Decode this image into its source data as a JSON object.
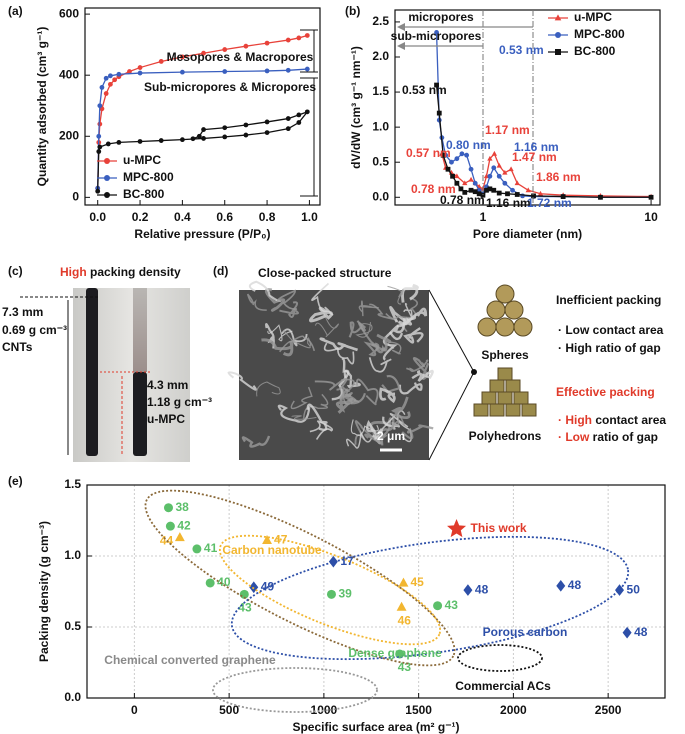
{
  "chart_data": [
    {
      "type": "line",
      "panel_label": "(a)",
      "xlabel": "Relative pressure (P/P₀)",
      "ylabel": "Quantity adsorbed (cm³ g⁻¹)",
      "xlim": [
        -0.06,
        1.05
      ],
      "ylim": [
        -25,
        620
      ],
      "xticks": [
        {
          "value": 0,
          "label": "0.0"
        },
        {
          "value": 0.2,
          "label": "0.2"
        },
        {
          "value": 0.4,
          "label": "0.4"
        },
        {
          "value": 0.6,
          "label": "0.6"
        },
        {
          "value": 0.8,
          "label": "0.8"
        },
        {
          "value": 1,
          "label": "1.0"
        }
      ],
      "yticks": [
        0,
        200,
        400,
        600
      ],
      "legend": "lower left",
      "annotations": [
        "Mesopores & Macropores",
        "Sub-micropores & Micropores"
      ],
      "series": [
        {
          "name": "u-MPC",
          "color": "#e8423a",
          "marker": "circle",
          "x": [
            0,
            0.005,
            0.01,
            0.02,
            0.04,
            0.06,
            0.08,
            0.1,
            0.15,
            0.2,
            0.3,
            0.4,
            0.5,
            0.6,
            0.7,
            0.8,
            0.9,
            0.95,
            0.99
          ],
          "values": [
            30,
            180,
            240,
            290,
            340,
            370,
            385,
            395,
            412,
            425,
            445,
            460,
            472,
            484,
            495,
            505,
            515,
            522,
            530
          ]
        },
        {
          "name": "MPC-800",
          "color": "#3a5fbf",
          "marker": "circle",
          "x": [
            0,
            0.005,
            0.01,
            0.02,
            0.04,
            0.06,
            0.1,
            0.2,
            0.4,
            0.6,
            0.8,
            0.9,
            0.99
          ],
          "values": [
            30,
            200,
            300,
            360,
            390,
            398,
            403,
            407,
            410,
            412,
            414,
            416,
            420
          ]
        },
        {
          "name": "BC-800",
          "color": "#111111",
          "marker": "circle",
          "x": [
            0,
            0.005,
            0.01,
            0.05,
            0.1,
            0.2,
            0.3,
            0.4,
            0.5,
            0.6,
            0.7,
            0.8,
            0.9,
            0.95,
            0.99,
            0.95,
            0.9,
            0.8,
            0.7,
            0.6,
            0.5,
            0.48,
            0.45
          ],
          "values": [
            20,
            150,
            165,
            175,
            180,
            183,
            186,
            189,
            193,
            198,
            204,
            212,
            225,
            245,
            280,
            270,
            258,
            247,
            237,
            228,
            222,
            200,
            192
          ]
        }
      ]
    },
    {
      "type": "line",
      "panel_label": "(b)",
      "xlabel": "Pore diameter (nm)",
      "ylabel": "dV/dW (cm³ g⁻¹ nm⁻¹)",
      "xscale": "log",
      "xlim": [
        0.3,
        11.3
      ],
      "ylim": [
        -0.11,
        2.67
      ],
      "xticks": [
        1,
        10
      ],
      "yticks": [
        {
          "value": 0,
          "label": "0.0"
        },
        {
          "value": 0.5,
          "label": "0.5"
        },
        {
          "value": 1,
          "label": "1.0"
        },
        {
          "value": 1.5,
          "label": "1.5"
        },
        {
          "value": 2,
          "label": "2.0"
        },
        {
          "value": 2.5,
          "label": "2.5"
        }
      ],
      "legend": "upper right",
      "regions": [
        "micropores",
        "sub-micropores"
      ],
      "peak_labels": [
        {
          "text": "0.53 nm",
          "color": "#3a5fbf"
        },
        {
          "text": "0.53 nm",
          "color": "#111111"
        },
        {
          "text": "0.57 nm",
          "color": "#e8423a"
        },
        {
          "text": "0.80 nm",
          "color": "#3a5fbf"
        },
        {
          "text": "1.17 nm",
          "color": "#e8423a"
        },
        {
          "text": "1.16 nm",
          "color": "#3a5fbf"
        },
        {
          "text": "1.47 nm",
          "color": "#e8423a"
        },
        {
          "text": "1.86 nm",
          "color": "#e8423a"
        },
        {
          "text": "0.78 nm",
          "color": "#e8423a"
        },
        {
          "text": "0.78 nm",
          "color": "#111111"
        },
        {
          "text": "1.16 nm",
          "color": "#111111"
        },
        {
          "text": "1.72 nm",
          "color": "#3a5fbf"
        }
      ],
      "series": [
        {
          "name": "u-MPC",
          "color": "#e8423a",
          "marker": "triangle",
          "x": [
            0.57,
            0.6,
            0.65,
            0.7,
            0.78,
            0.85,
            0.9,
            0.95,
            1.0,
            1.05,
            1.1,
            1.17,
            1.25,
            1.35,
            1.47,
            1.6,
            1.86,
            2.2,
            3,
            5,
            10
          ],
          "values": [
            0.62,
            0.42,
            0.35,
            0.3,
            0.2,
            0.25,
            0.2,
            0.15,
            0.12,
            0.3,
            0.55,
            0.62,
            0.45,
            0.35,
            0.4,
            0.2,
            0.1,
            0.05,
            0.03,
            0.02,
            0.01
          ]
        },
        {
          "name": "MPC-800",
          "color": "#3a5fbf",
          "marker": "circle",
          "x": [
            0.53,
            0.55,
            0.57,
            0.6,
            0.65,
            0.7,
            0.75,
            0.8,
            0.85,
            0.9,
            0.95,
            1.0,
            1.05,
            1.1,
            1.16,
            1.25,
            1.35,
            1.5,
            1.72,
            2,
            3,
            5,
            10
          ],
          "values": [
            2.35,
            1.1,
            0.85,
            0.6,
            0.5,
            0.55,
            0.62,
            0.6,
            0.4,
            0.2,
            0.1,
            0.05,
            0.15,
            0.3,
            0.42,
            0.3,
            0.2,
            0.1,
            0.02,
            0.01,
            0.01,
            0,
            0
          ]
        },
        {
          "name": "BC-800",
          "color": "#111111",
          "marker": "square",
          "x": [
            0.53,
            0.55,
            0.58,
            0.62,
            0.66,
            0.7,
            0.74,
            0.78,
            0.85,
            0.9,
            0.95,
            1.0,
            1.05,
            1.1,
            1.16,
            1.25,
            1.4,
            1.6,
            2,
            3,
            5,
            10
          ],
          "values": [
            1.6,
            1.2,
            0.6,
            0.4,
            0.3,
            0.2,
            0.12,
            0.07,
            0.1,
            0.08,
            0.05,
            0.03,
            0.1,
            0.12,
            0.1,
            0.06,
            0.05,
            0.04,
            0.02,
            0.01,
            0,
            0
          ]
        }
      ]
    },
    {
      "type": "scatter",
      "panel_label": "(e)",
      "xlabel": "Specific surface area (m² g⁻¹)",
      "ylabel": "Packing density (g cm⁻³)",
      "xlim": [
        -250,
        2800
      ],
      "ylim": [
        0,
        1.5
      ],
      "grid": true,
      "xticks": [
        0,
        500,
        1000,
        1500,
        2000,
        2500
      ],
      "yticks": [
        {
          "value": 0,
          "label": "0.0"
        },
        {
          "value": 0.5,
          "label": "0.5"
        },
        {
          "value": 1,
          "label": "1.0"
        },
        {
          "value": 1.5,
          "label": "1.5"
        }
      ],
      "groups": [
        {
          "text": "Carbon nanotube",
          "color": "#f2b630"
        },
        {
          "text": "Porous carbon",
          "color": "#2d4fa8"
        },
        {
          "text": "Dense graphene",
          "color": "#5cbf6a"
        },
        {
          "text": "Chemical converted graphene",
          "color": "#8a8a8a"
        },
        {
          "text": "Commercial ACs",
          "color": "#111111"
        }
      ],
      "series": [
        {
          "color": "#5cbf6a",
          "marker": "circle",
          "x": [
            180,
            190,
            330,
            400,
            580,
            1040,
            1600,
            1400
          ],
          "values": [
            1.34,
            1.21,
            1.05,
            0.81,
            0.73,
            0.73,
            0.65,
            0.31
          ],
          "point_labels": [
            "38",
            "42",
            "41",
            "40",
            "43",
            "39",
            "43",
            "43"
          ]
        },
        {
          "color": "#f2b630",
          "marker": "triangle",
          "x": [
            240,
            700,
            1420,
            1410
          ],
          "values": [
            1.13,
            1.11,
            0.81,
            0.64
          ],
          "point_labels": [
            "44",
            "47",
            "45",
            "46"
          ]
        },
        {
          "color": "#2d4fa8",
          "marker": "diamond",
          "x": [
            630,
            1050,
            1760,
            2250,
            2560,
            2600
          ],
          "values": [
            0.78,
            0.96,
            0.76,
            0.79,
            0.76,
            0.46
          ],
          "point_labels": [
            "49",
            "17",
            "48",
            "48",
            "50",
            "48"
          ]
        },
        {
          "name": "This work",
          "color": "#e03a2a",
          "marker": "star",
          "x": [
            1700
          ],
          "values": [
            1.19
          ]
        }
      ]
    }
  ],
  "panel_c": {
    "label": "(c)",
    "title_highlight": "High",
    "title_rest": "packing density",
    "cnt_lines": [
      "7.3 mm",
      "0.69 g cm⁻³",
      "CNTs"
    ],
    "umpc_lines": [
      "4.3 mm",
      "1.18 g cm⁻³",
      "u-MPC"
    ]
  },
  "panel_d": {
    "label": "(d)",
    "title": "Close-packed structure",
    "scale_bar": "2 μm",
    "spheres": "Spheres",
    "polyhedrons": "Polyhedrons",
    "inefficient": "Inefficient packing",
    "ineff_points": [
      "· Low contact area",
      "· High ratio of gap"
    ],
    "effective": "Effective packing",
    "eff_points": [
      {
        "bullet": "· ",
        "highlight": "High",
        "rest": " contact area"
      },
      {
        "bullet": "· ",
        "highlight": "Low",
        "rest": " ratio of gap"
      }
    ]
  }
}
